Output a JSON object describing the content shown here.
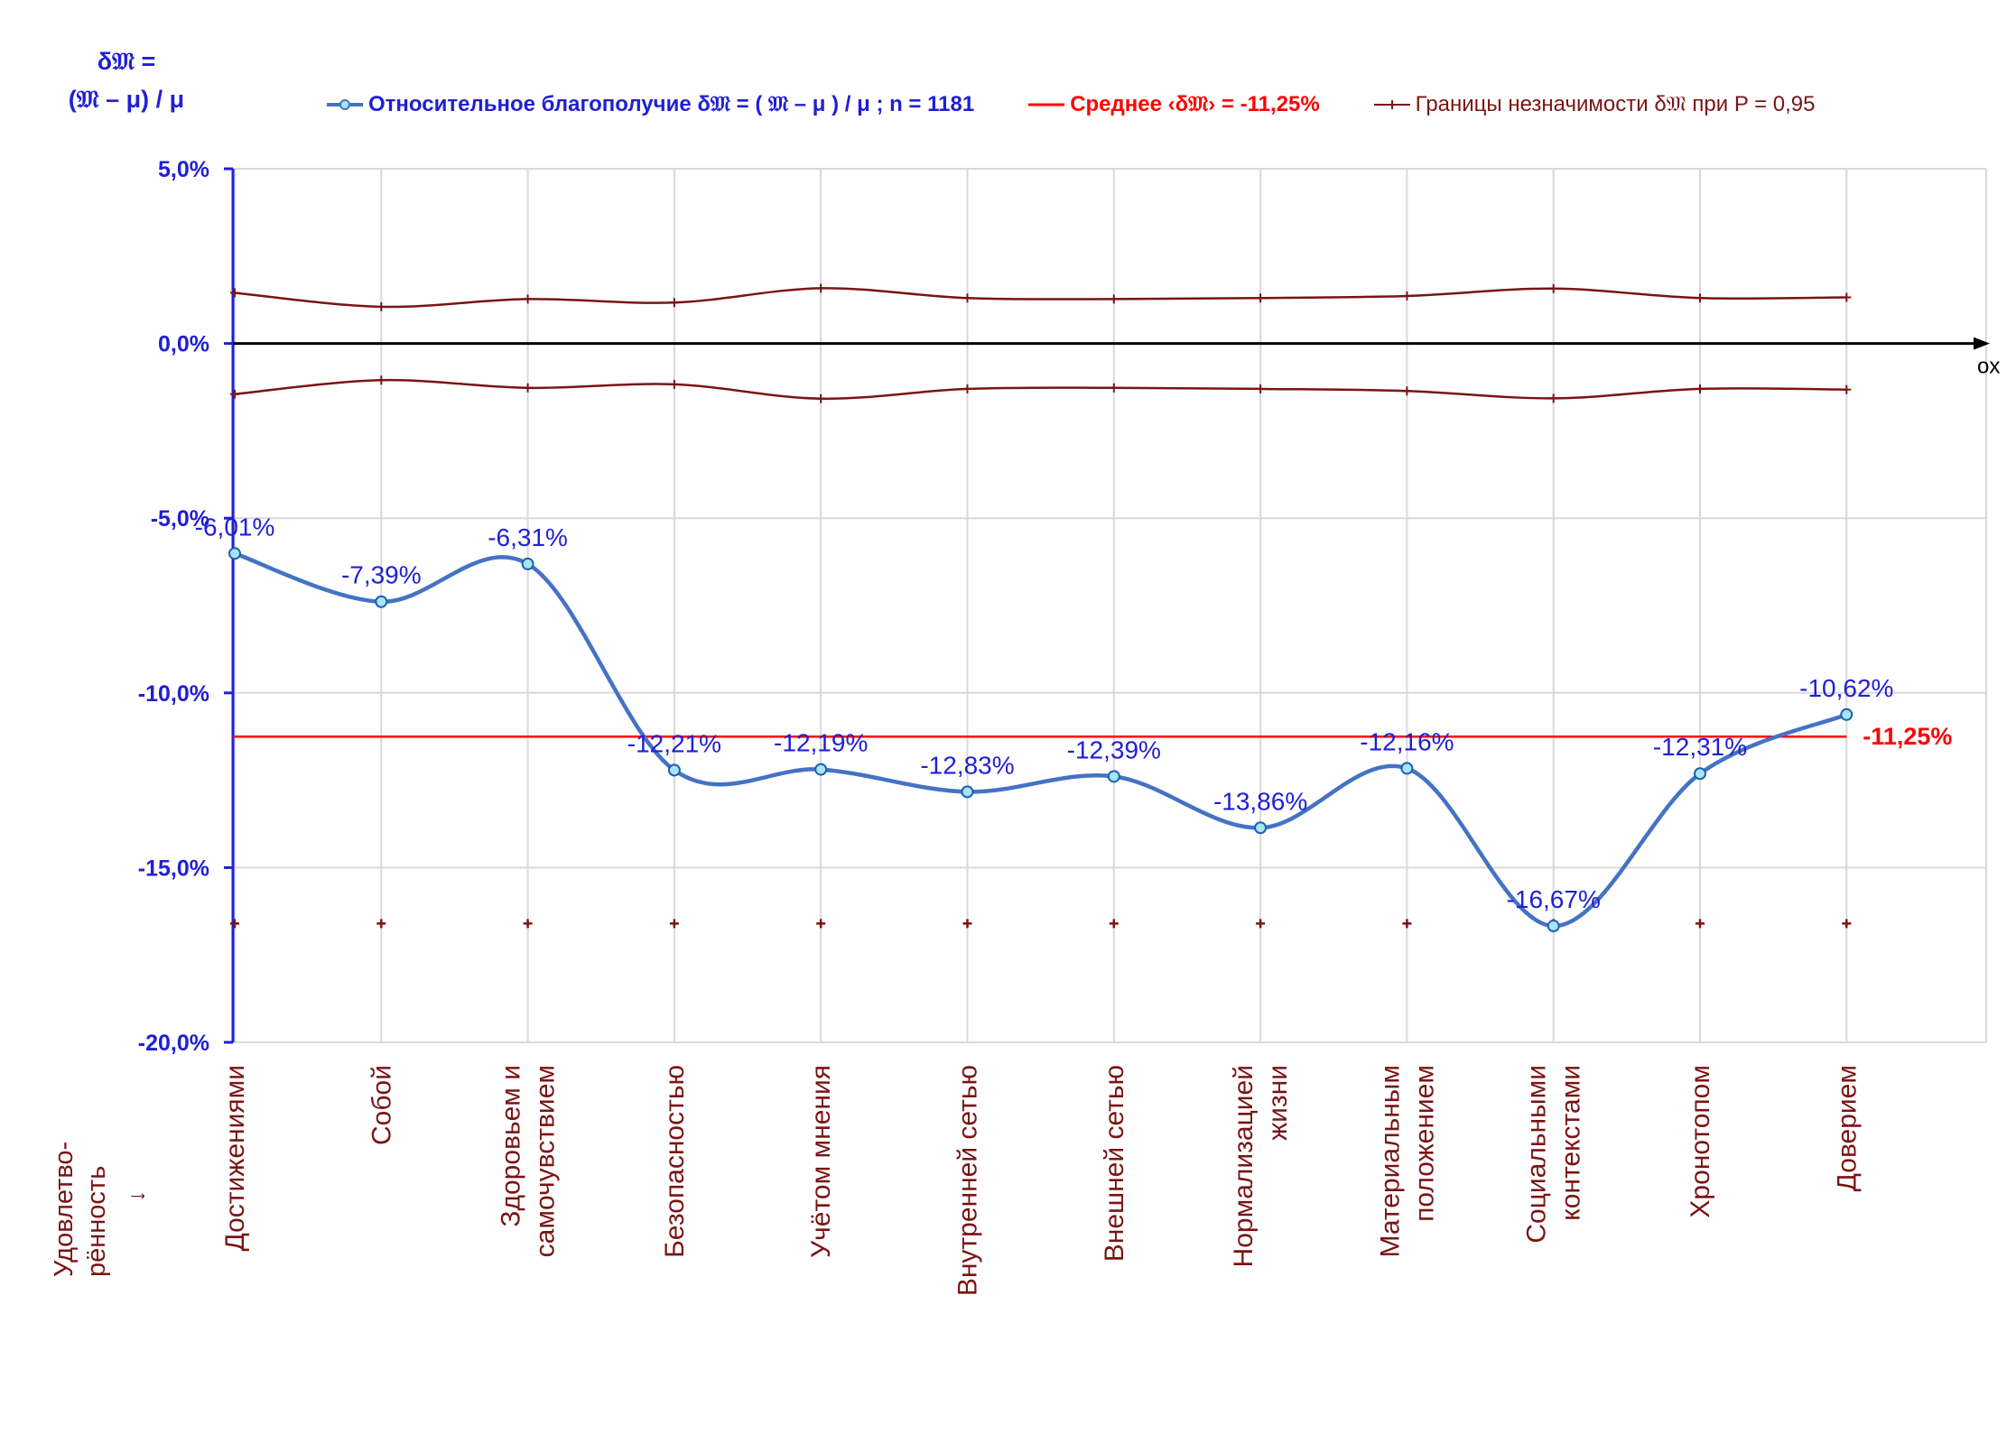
{
  "axis_title": {
    "line1": "δ𝔐 =",
    "line2": "(𝔐 – μ) / μ"
  },
  "legend": {
    "series_main": "Относительное благополучие δ𝔐 = ( 𝔐 – μ ) / μ ; n = 1181",
    "mean": "Среднее ‹δ𝔐› = -11,25%",
    "bounds": "Границы незначимости δ𝔐 при P = 0,95"
  },
  "x_axis_corner_label": {
    "line1": "Удовлетво-",
    "line2": "рённость",
    "line3": "→"
  },
  "colors": {
    "series": "#4472c4",
    "labels": "#1f1fd6",
    "mean": "#ff0000",
    "bounds": "#7a1414",
    "grid": "#d9d9d9",
    "marker_fill": "#a8e4f4"
  },
  "chart_data": {
    "type": "line",
    "x_axis_name": "ox",
    "categories": [
      [
        "Достижениями"
      ],
      [
        "Собой"
      ],
      [
        "Здоровьем и",
        "самочувствием"
      ],
      [
        "Безопасностью"
      ],
      [
        "Учётом мнения"
      ],
      [
        "Внутренней сетью"
      ],
      [
        "Внешней сетью"
      ],
      [
        "Нормализацией",
        "жизни"
      ],
      [
        "Материальным",
        "положением"
      ],
      [
        "Социальными",
        "контекстами"
      ],
      [
        "Хронотопом"
      ],
      [
        "Доверием"
      ]
    ],
    "series": [
      {
        "name": "Относительное благополучие",
        "values": [
          -6.01,
          -7.39,
          -6.31,
          -12.21,
          -12.19,
          -12.83,
          -12.39,
          -13.86,
          -12.16,
          -16.67,
          -12.31,
          -10.62
        ],
        "labels": [
          "-6,01%",
          "-7,39%",
          "-6,31%",
          "-12,21%",
          "-12,19%",
          "-12,83%",
          "-12,39%",
          "-13,86%",
          "-12,16%",
          "-16,67%",
          "-12,31%",
          "-10,62%"
        ]
      }
    ],
    "mean": {
      "value": -11.25,
      "label": "-11,25%"
    },
    "bounds_upper": [
      1.45,
      1.05,
      1.27,
      1.17,
      1.58,
      1.3,
      1.27,
      1.3,
      1.36,
      1.57,
      1.3,
      1.32
    ],
    "bounds_lower": [
      -1.45,
      -1.05,
      -1.27,
      -1.17,
      -1.58,
      -1.3,
      -1.27,
      -1.3,
      -1.36,
      -1.57,
      -1.3,
      -1.32
    ],
    "baseline_markers": -16.6,
    "ylim": [
      -20,
      5
    ],
    "yticks": [
      5,
      0,
      -5,
      -10,
      -15,
      -20
    ],
    "ytick_labels": [
      "5,0%",
      "0,0%",
      "-5,0%",
      "-10,0%",
      "-15,0%",
      "-20,0%"
    ],
    "grid": true
  }
}
